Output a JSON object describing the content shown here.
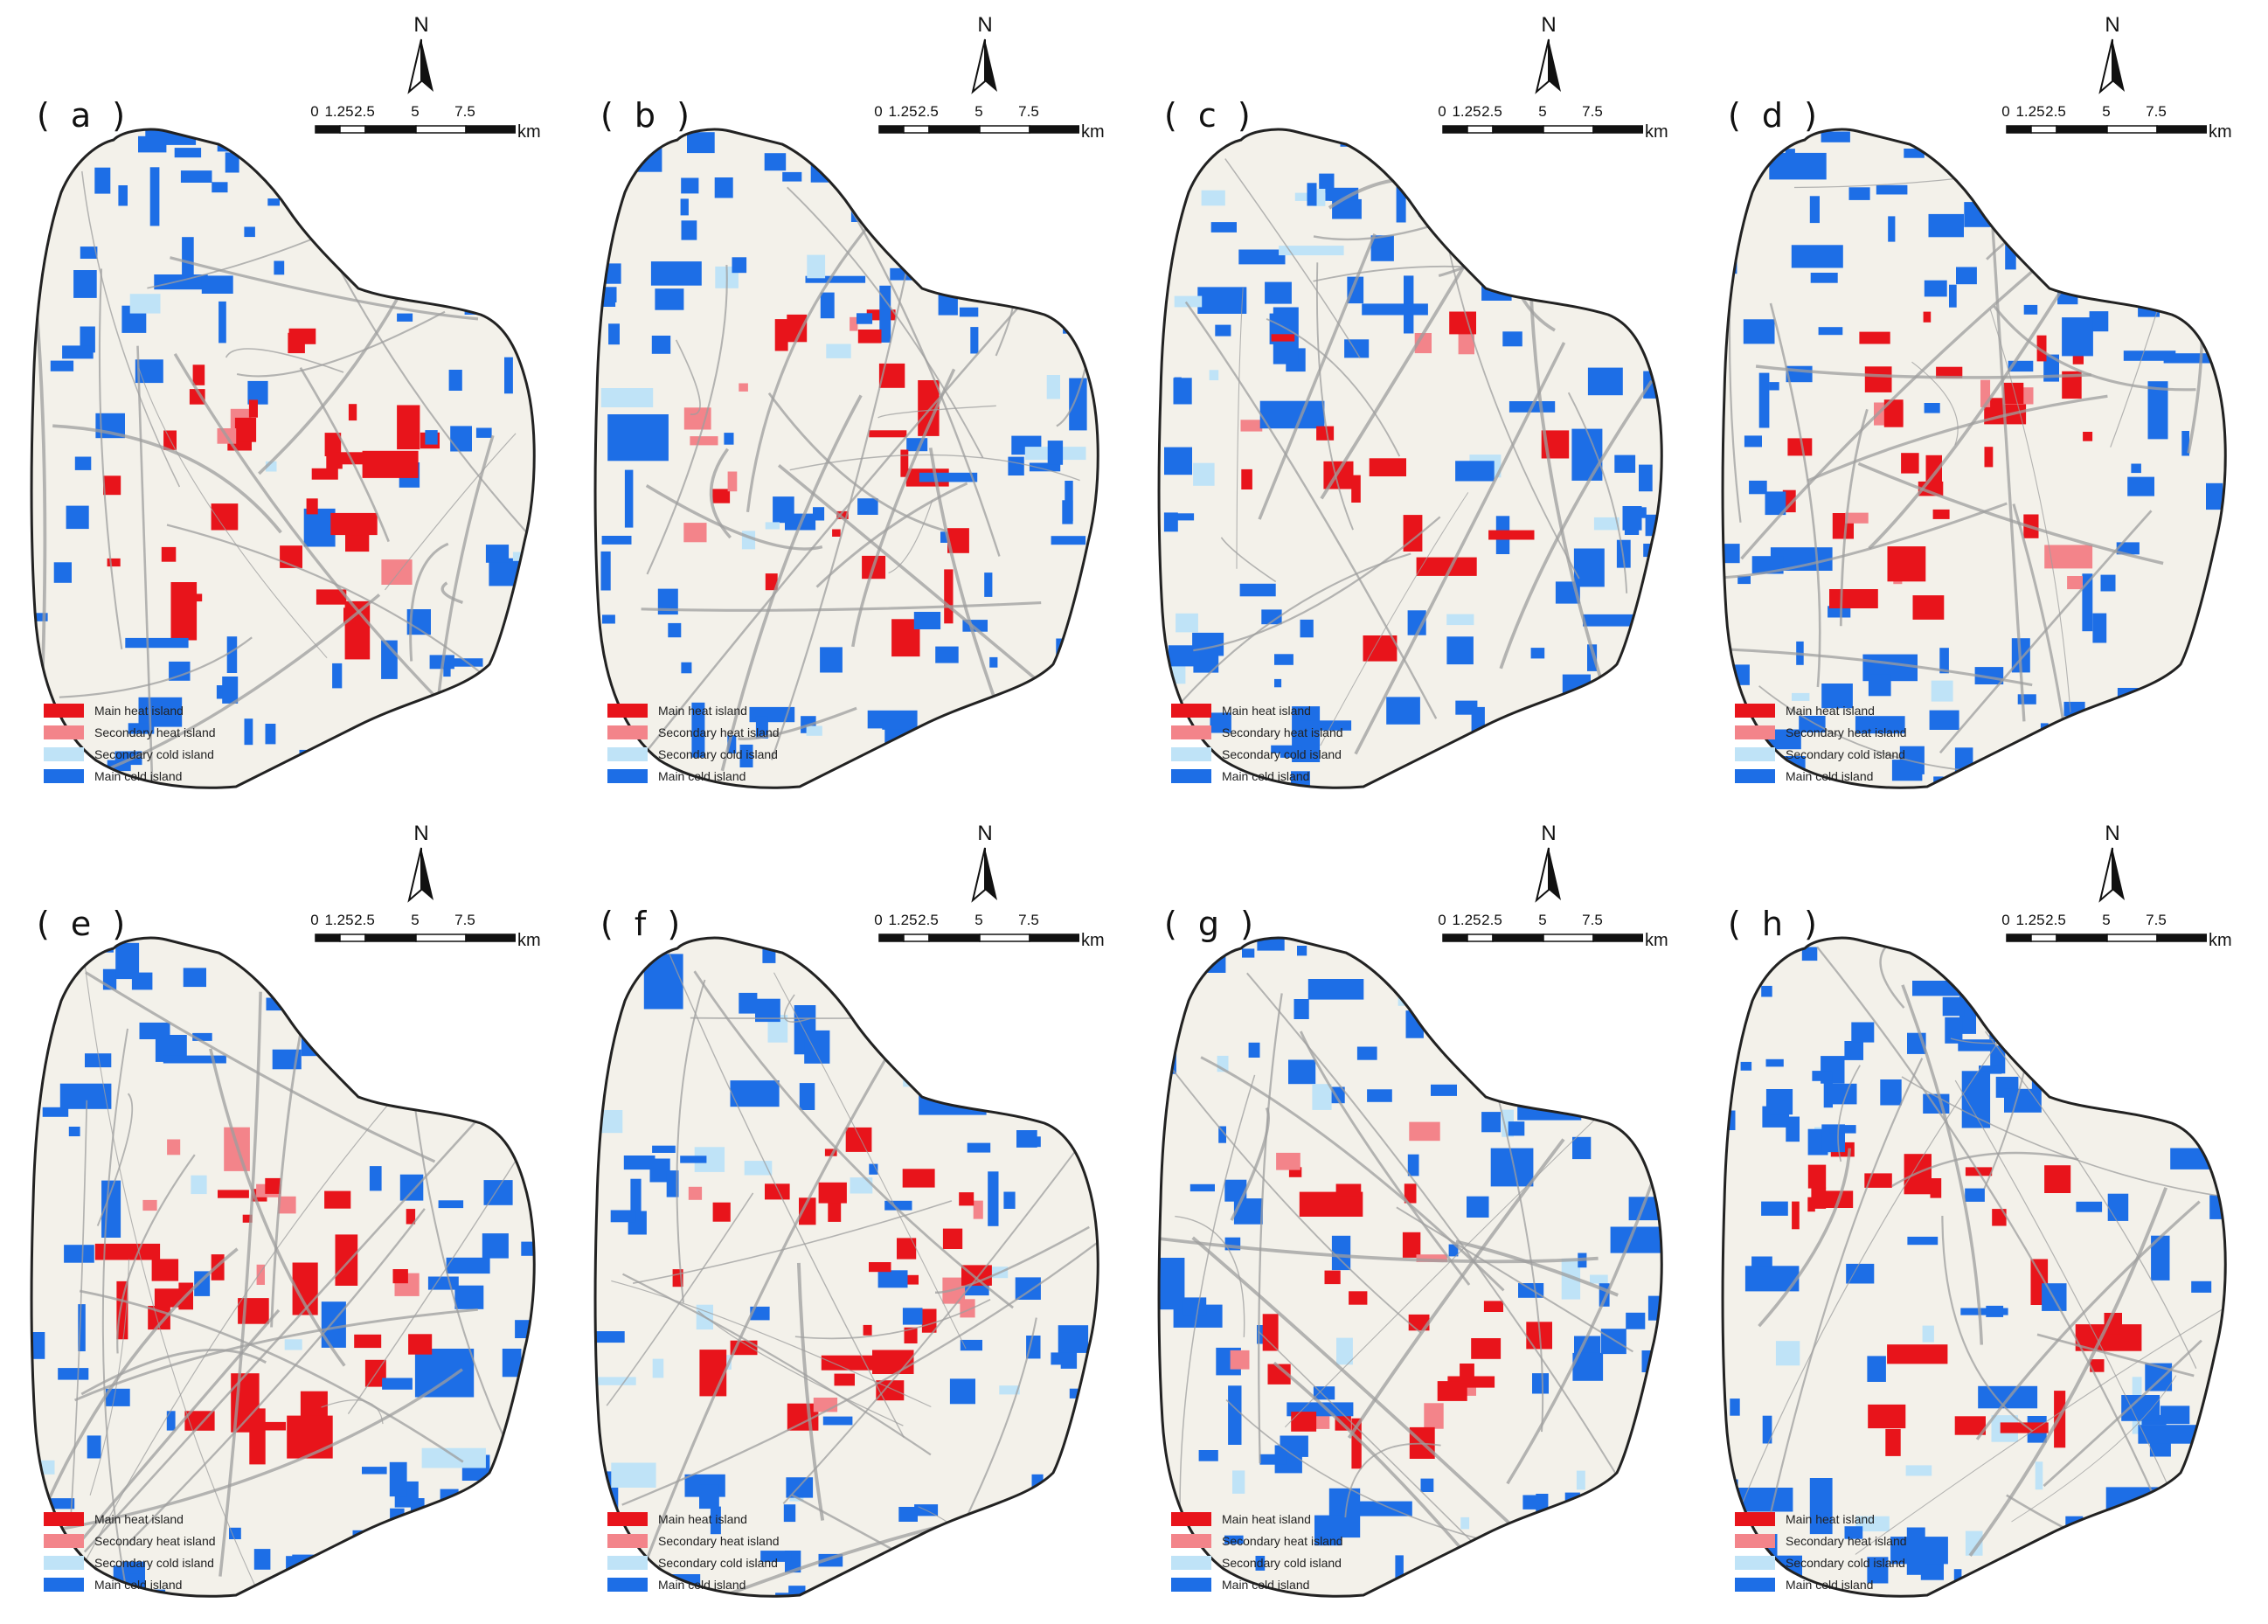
{
  "figure": {
    "panels": [
      {
        "label": "( a )"
      },
      {
        "label": "( b )"
      },
      {
        "label": "( c )"
      },
      {
        "label": "( d )"
      },
      {
        "label": "( e )"
      },
      {
        "label": "( f )"
      },
      {
        "label": "( g )"
      },
      {
        "label": "( h )"
      }
    ],
    "north_arrow": {
      "letter": "N",
      "icon": "north-arrow-icon"
    },
    "scale_bar": {
      "ticks": [
        "0",
        "1.25",
        "2.5",
        "5",
        "7.5"
      ],
      "unit": "km"
    },
    "legend": [
      {
        "label": "Main heat island",
        "color": "#e8141b"
      },
      {
        "label": "Secondary heat island",
        "color": "#f3848a"
      },
      {
        "label": "Secondary cold island",
        "color": "#bfe3f7"
      },
      {
        "label": "Main cold island",
        "color": "#1d6ee6"
      }
    ],
    "colors": {
      "land": "#f3f1ea",
      "roads": "#9e9e9e",
      "boundary": "#222222"
    }
  }
}
